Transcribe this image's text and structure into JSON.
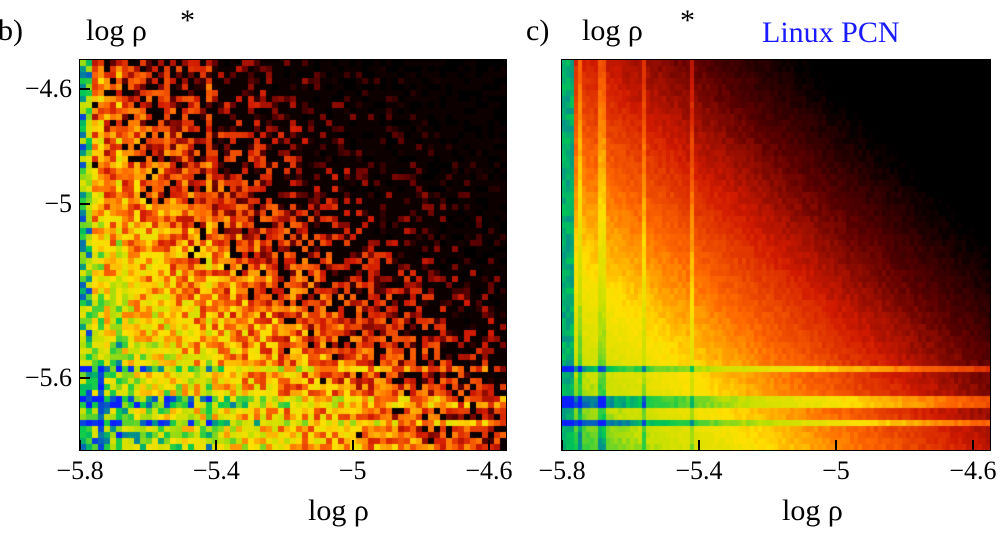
{
  "chart_data": [
    {
      "type": "heatmap",
      "panel_label": "b)",
      "ylabel": "log  ρ",
      "ylabel_superscript": "*",
      "xlabel": "log  ρ",
      "x_ticks": [
        "-5.8",
        "-5.4",
        "-5",
        "-4.6"
      ],
      "x_tick_values": [
        -5.8,
        -5.4,
        -5.0,
        -4.6
      ],
      "y_ticks": [
        "-4.6",
        "-5",
        "-5.6"
      ],
      "y_tick_values": [
        -4.6,
        -5.0,
        -5.6
      ],
      "xlim": [
        -5.8,
        -4.55
      ],
      "ylim": [
        -5.85,
        -4.5
      ],
      "colormap": [
        "#0a1fff",
        "#00c853",
        "#c8e000",
        "#ffe000",
        "#ff6a00",
        "#d11a00",
        "#5a0000",
        "#000000"
      ],
      "texture": "noisy"
    },
    {
      "type": "heatmap",
      "panel_label": "c)",
      "annotation": "Linux PCN",
      "annotation_color": "#1a1aff",
      "ylabel": "log  ρ",
      "ylabel_superscript": "*",
      "xlabel": "log  ρ",
      "x_ticks": [
        "-5.8",
        "-5.4",
        "-5",
        "-4.6"
      ],
      "x_tick_values": [
        -5.8,
        -5.4,
        -5.0,
        -4.6
      ],
      "y_ticks": [],
      "xlim": [
        -5.8,
        -4.55
      ],
      "ylim": [
        -5.85,
        -4.5
      ],
      "colormap": [
        "#0a1fff",
        "#00c853",
        "#c8e000",
        "#ffe000",
        "#ff6a00",
        "#d11a00",
        "#5a0000",
        "#000000"
      ],
      "texture": "smooth"
    }
  ]
}
